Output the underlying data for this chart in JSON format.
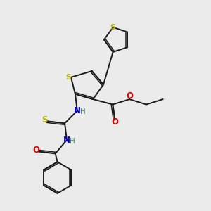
{
  "bg_color": "#ebebeb",
  "bond_color": "#1a1a1a",
  "S_color": "#b8b000",
  "N_color": "#0000cc",
  "O_color": "#dd0000",
  "H_color": "#4a8a6a",
  "fig_size": [
    3.0,
    3.0
  ],
  "dpi": 100,
  "xlim": [
    0,
    10
  ],
  "ylim": [
    0,
    10
  ]
}
